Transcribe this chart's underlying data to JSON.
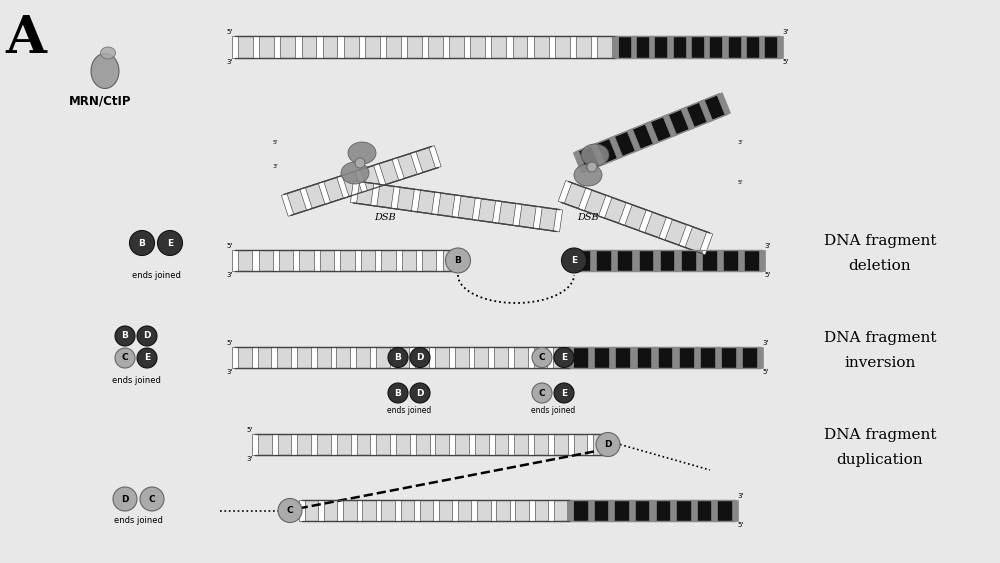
{
  "bg_color": "#e8e8e8",
  "title_letter": "A",
  "mrn_label": "MRN/CtIP",
  "label_deletion": [
    "DNA fragment",
    "deletion"
  ],
  "label_inversion": [
    "DNA fragment",
    "inversion"
  ],
  "label_duplication": [
    "DNA fragment",
    "duplication"
  ],
  "ends_joined": "ends joined",
  "strand_color_light": "#d8d8d8",
  "strand_color_dark": "#111111",
  "ladder_line_color": "#555555",
  "circle_dark": "#333333",
  "circle_light": "#aaaaaa",
  "rail_color": "#444444",
  "rung_fill": "#ffffff",
  "fig_w": 10.0,
  "fig_h": 5.63,
  "dpi": 100
}
